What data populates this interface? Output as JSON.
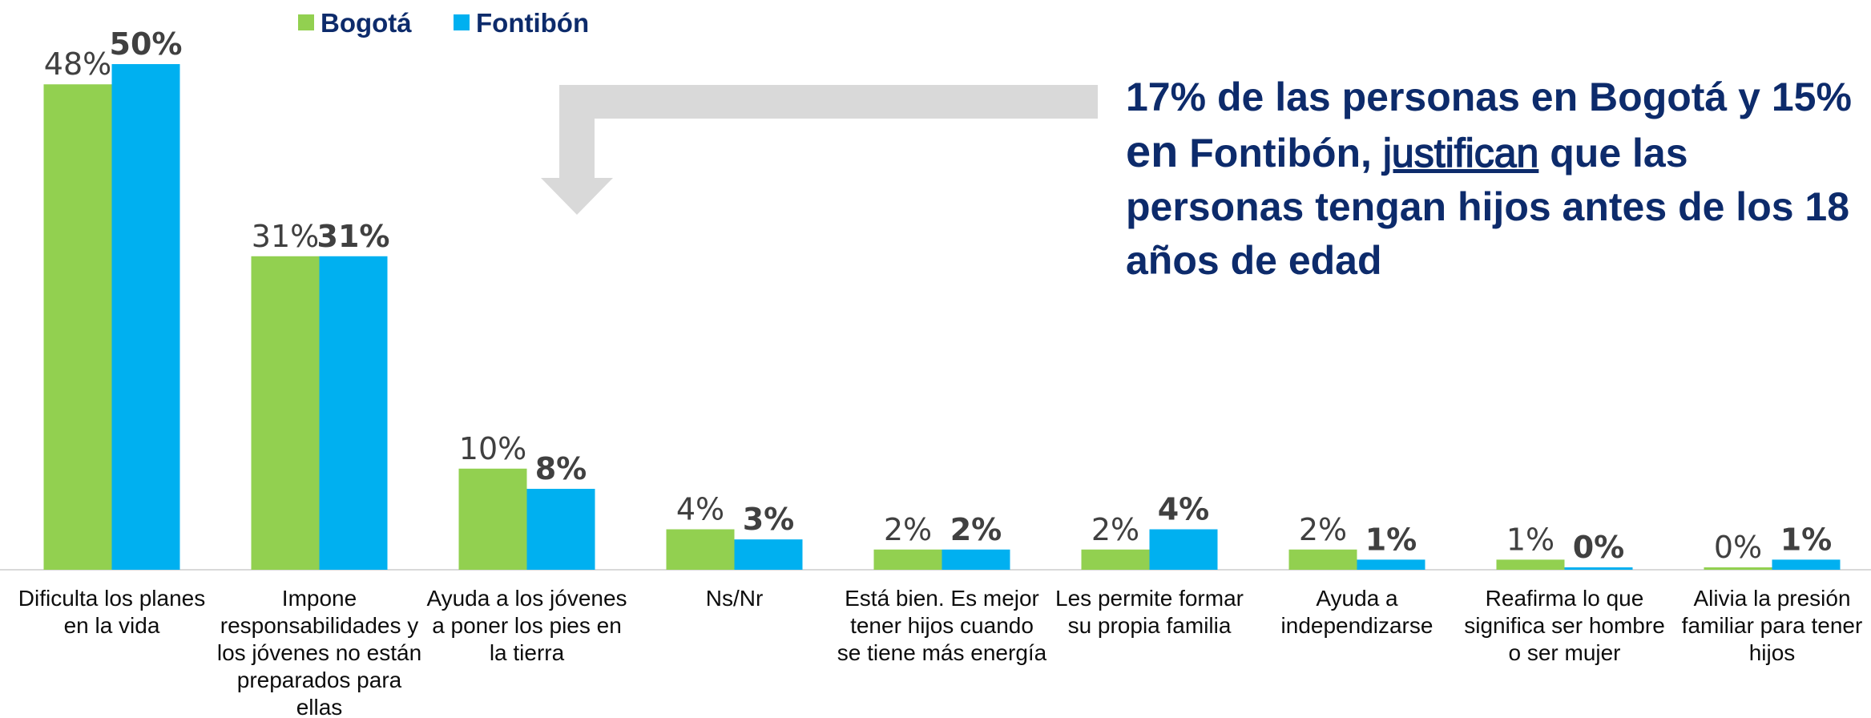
{
  "chart_data": {
    "type": "bar",
    "categories": [
      "Dificulta los planes en la vida",
      "Impone responsabilidades y los jóvenes no están preparados para ellas",
      "Ayuda a los jóvenes a poner los pies en la tierra",
      "Ns/Nr",
      "Está bien. Es mejor tener hijos cuando se tiene más energía",
      "Les permite formar su propia familia",
      "Ayuda a independizarse",
      "Reafirma lo que significa ser hombre o ser mujer",
      "Alivia la presión familiar para tener hijos"
    ],
    "series": [
      {
        "name": "Bogotá",
        "color": "#92d050",
        "values": [
          48,
          31,
          10,
          4,
          2,
          2,
          2,
          1,
          0
        ],
        "value_labels": [
          "48%",
          "31%",
          "10%",
          "4%",
          "2%",
          "2%",
          "2%",
          "1%",
          "0%"
        ]
      },
      {
        "name": "Fontibón",
        "color": "#00b0f0",
        "values": [
          50,
          31,
          8,
          3,
          2,
          4,
          1,
          0,
          1
        ],
        "value_labels": [
          "50%",
          "31%",
          "8%",
          "3%",
          "2%",
          "4%",
          "1%",
          "0%",
          "1%"
        ]
      }
    ],
    "annotation": [
      "17% de las personas en Bogotá y 15% ",
      "en",
      " Fontibón, ",
      "justifican",
      " que las personas tengan hijos antes de los 18 años de edad"
    ]
  }
}
